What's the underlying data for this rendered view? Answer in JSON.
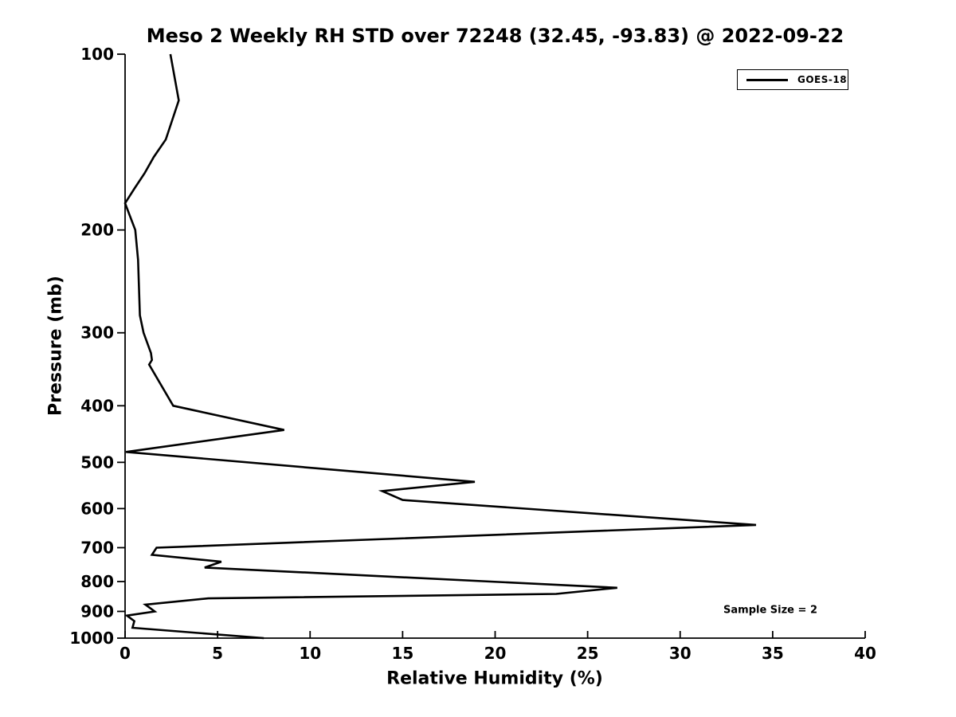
{
  "figure": {
    "background": "#ffffff",
    "foreground": "#000000"
  },
  "chart_data": {
    "type": "line",
    "title": "Meso 2 Weekly RH STD over 72248 (32.45, -93.83) @ 2022-09-22",
    "xlabel": "Relative Humidity (%)",
    "ylabel": "Pressure (mb)",
    "xlim": [
      0,
      40
    ],
    "ylim": [
      100,
      1000
    ],
    "yscale": "log",
    "y_inverted": true,
    "grid": false,
    "x_ticks": [
      0,
      5,
      10,
      15,
      20,
      25,
      30,
      35,
      40
    ],
    "y_ticks": [
      100,
      200,
      300,
      400,
      500,
      600,
      700,
      800,
      900,
      1000
    ],
    "legend": {
      "position": "upper right",
      "entries": [
        "GOES-18"
      ]
    },
    "annotation": "Sample Size = 2",
    "series": [
      {
        "name": "GOES-18",
        "color": "#000000",
        "line_width": 2.6,
        "points_format": "[rh_percent, pressure_mb]",
        "points": [
          [
            2.45,
            100
          ],
          [
            2.9,
            120
          ],
          [
            2.2,
            140
          ],
          [
            1.55,
            150
          ],
          [
            1.05,
            160
          ],
          [
            0.5,
            170
          ],
          [
            0.0,
            180
          ],
          [
            0.55,
            200
          ],
          [
            0.7,
            225
          ],
          [
            0.75,
            250
          ],
          [
            0.8,
            280
          ],
          [
            1.0,
            300
          ],
          [
            1.4,
            325
          ],
          [
            1.45,
            334
          ],
          [
            1.3,
            340
          ],
          [
            2.6,
            400
          ],
          [
            8.6,
            440
          ],
          [
            0.05,
            480
          ],
          [
            18.9,
            540
          ],
          [
            13.9,
            560
          ],
          [
            15.0,
            580
          ],
          [
            34.1,
            640
          ],
          [
            1.7,
            700
          ],
          [
            1.45,
            720
          ],
          [
            5.2,
            740
          ],
          [
            4.3,
            757
          ],
          [
            26.6,
            820
          ],
          [
            23.3,
            840
          ],
          [
            4.5,
            855
          ],
          [
            1.1,
            876
          ],
          [
            1.6,
            900
          ],
          [
            0.1,
            915
          ],
          [
            0.5,
            935
          ],
          [
            0.4,
            960
          ],
          [
            7.5,
            1000
          ]
        ]
      }
    ]
  }
}
